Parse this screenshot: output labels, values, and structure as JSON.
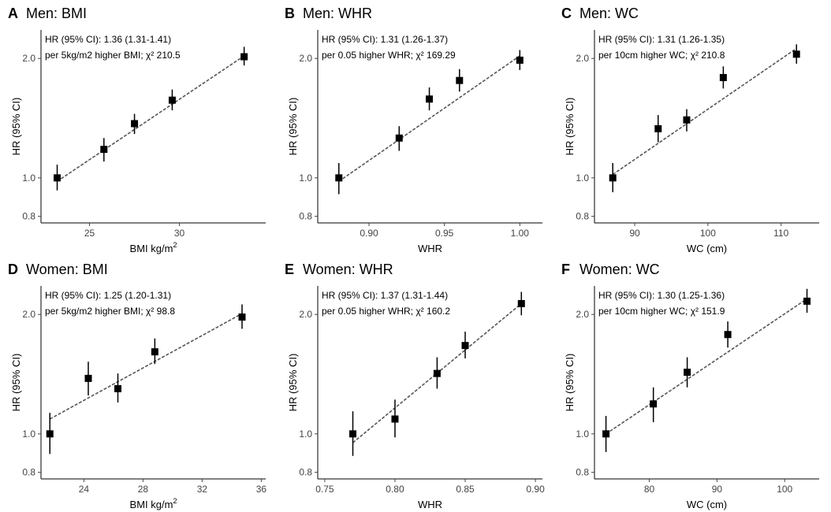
{
  "chart_data": [
    {
      "panel": "A",
      "title": "Men: BMI",
      "type": "scatter",
      "annotation_line1": "HR (95% CI): 1.36 (1.31-1.41)",
      "annotation_line2": "per 5kg/m2 higher BMI; χ² 210.5",
      "xlabel": "BMI kg/m",
      "xlabel_sup": "2",
      "ylabel": "HR (95% CI)",
      "xlim": [
        22.3,
        34.8
      ],
      "ylim": [
        0.77,
        2.36
      ],
      "y_scale": "log",
      "xticks": [
        25,
        30
      ],
      "xtick_labels": [
        "25",
        "30"
      ],
      "yticks": [
        0.8,
        1.0,
        2.0
      ],
      "ytick_labels": [
        "0.8",
        "1.0",
        "2.0"
      ],
      "points": [
        {
          "x": 23.2,
          "y": 1.0,
          "lo": 0.93,
          "hi": 1.08
        },
        {
          "x": 25.8,
          "y": 1.18,
          "lo": 1.1,
          "hi": 1.26
        },
        {
          "x": 27.5,
          "y": 1.37,
          "lo": 1.29,
          "hi": 1.45
        },
        {
          "x": 29.6,
          "y": 1.57,
          "lo": 1.48,
          "hi": 1.67
        },
        {
          "x": 33.6,
          "y": 2.02,
          "lo": 1.92,
          "hi": 2.14
        }
      ],
      "fit": [
        [
          23.2,
          0.98
        ],
        [
          33.6,
          2.03
        ]
      ]
    },
    {
      "panel": "B",
      "title": "Men: WHR",
      "type": "scatter",
      "annotation_line1": "HR (95% CI): 1.31 (1.26-1.37)",
      "annotation_line2": "per 0.05 higher WHR; χ² 169.29",
      "xlabel": "WHR",
      "xlabel_sup": "",
      "ylabel": "HR (95% CI)",
      "xlim": [
        0.866,
        1.015
      ],
      "ylim": [
        0.77,
        2.36
      ],
      "y_scale": "log",
      "xticks": [
        0.9,
        0.95,
        1.0
      ],
      "xtick_labels": [
        "0.90",
        "0.95",
        "1.00"
      ],
      "yticks": [
        0.8,
        1.0,
        2.0
      ],
      "ytick_labels": [
        "0.8",
        "1.0",
        "2.0"
      ],
      "points": [
        {
          "x": 0.88,
          "y": 1.0,
          "lo": 0.91,
          "hi": 1.09
        },
        {
          "x": 0.92,
          "y": 1.26,
          "lo": 1.17,
          "hi": 1.35
        },
        {
          "x": 0.94,
          "y": 1.58,
          "lo": 1.48,
          "hi": 1.69
        },
        {
          "x": 0.96,
          "y": 1.76,
          "lo": 1.65,
          "hi": 1.88
        },
        {
          "x": 1.0,
          "y": 1.98,
          "lo": 1.87,
          "hi": 2.1
        }
      ],
      "fit": [
        [
          0.88,
          0.98
        ],
        [
          1.0,
          2.03
        ]
      ]
    },
    {
      "panel": "C",
      "title": "Men: WC",
      "type": "scatter",
      "annotation_line1": "HR (95% CI): 1.31 (1.26-1.35)",
      "annotation_line2": "per 10cm higher WC; χ² 210.8",
      "xlabel": "WC (cm)",
      "xlabel_sup": "",
      "ylabel": "HR (95% CI)",
      "xlim": [
        84.5,
        115.2
      ],
      "ylim": [
        0.77,
        2.36
      ],
      "y_scale": "log",
      "xticks": [
        90,
        100,
        110
      ],
      "xtick_labels": [
        "90",
        "100",
        "110"
      ],
      "yticks": [
        0.8,
        1.0,
        2.0
      ],
      "ytick_labels": [
        "0.8",
        "1.0",
        "2.0"
      ],
      "points": [
        {
          "x": 87.0,
          "y": 1.0,
          "lo": 0.92,
          "hi": 1.09
        },
        {
          "x": 93.2,
          "y": 1.33,
          "lo": 1.23,
          "hi": 1.44
        },
        {
          "x": 97.1,
          "y": 1.4,
          "lo": 1.31,
          "hi": 1.49
        },
        {
          "x": 102.1,
          "y": 1.79,
          "lo": 1.68,
          "hi": 1.91
        },
        {
          "x": 112.1,
          "y": 2.05,
          "lo": 1.94,
          "hi": 2.17
        }
      ],
      "fit": [
        [
          87.0,
          1.02
        ],
        [
          112.1,
          2.12
        ]
      ]
    },
    {
      "panel": "D",
      "title": "Women: BMI",
      "type": "scatter",
      "annotation_line1": "HR (95% CI): 1.25 (1.20-1.31)",
      "annotation_line2": "per 5kg/m2 higher BMI; χ² 98.8",
      "xlabel": "BMI kg/m",
      "xlabel_sup": "2",
      "ylabel": "HR (95% CI)",
      "xlim": [
        21.1,
        36.3
      ],
      "ylim": [
        0.77,
        2.36
      ],
      "y_scale": "log",
      "xticks": [
        24,
        28,
        32,
        36
      ],
      "xtick_labels": [
        "24",
        "28",
        "32",
        "36"
      ],
      "yticks": [
        0.8,
        1.0,
        2.0
      ],
      "ytick_labels": [
        "0.8",
        "1.0",
        "2.0"
      ],
      "points": [
        {
          "x": 21.7,
          "y": 1.0,
          "lo": 0.89,
          "hi": 1.13
        },
        {
          "x": 24.3,
          "y": 1.38,
          "lo": 1.25,
          "hi": 1.52
        },
        {
          "x": 26.3,
          "y": 1.3,
          "lo": 1.2,
          "hi": 1.42
        },
        {
          "x": 28.8,
          "y": 1.61,
          "lo": 1.5,
          "hi": 1.74
        },
        {
          "x": 34.7,
          "y": 1.97,
          "lo": 1.84,
          "hi": 2.12
        }
      ],
      "fit": [
        [
          21.7,
          1.09
        ],
        [
          34.7,
          2.01
        ]
      ]
    },
    {
      "panel": "E",
      "title": "Women: WHR",
      "type": "scatter",
      "annotation_line1": "HR (95% CI): 1.37 (1.31-1.44)",
      "annotation_line2": "per 0.05 higher WHR; χ² 160.2",
      "xlabel": "WHR",
      "xlabel_sup": "",
      "ylabel": "HR (95% CI)",
      "xlim": [
        0.745,
        0.905
      ],
      "ylim": [
        0.77,
        2.36
      ],
      "y_scale": "log",
      "xticks": [
        0.75,
        0.8,
        0.85,
        0.9
      ],
      "xtick_labels": [
        "0.75",
        "0.80",
        "0.85",
        "0.90"
      ],
      "yticks": [
        0.8,
        1.0,
        2.0
      ],
      "ytick_labels": [
        "0.8",
        "1.0",
        "2.0"
      ],
      "points": [
        {
          "x": 0.77,
          "y": 1.0,
          "lo": 0.88,
          "hi": 1.14
        },
        {
          "x": 0.8,
          "y": 1.09,
          "lo": 0.98,
          "hi": 1.22
        },
        {
          "x": 0.83,
          "y": 1.42,
          "lo": 1.3,
          "hi": 1.56
        },
        {
          "x": 0.85,
          "y": 1.67,
          "lo": 1.55,
          "hi": 1.81
        },
        {
          "x": 0.89,
          "y": 2.13,
          "lo": 1.99,
          "hi": 2.28
        }
      ],
      "fit": [
        [
          0.77,
          0.95
        ],
        [
          0.89,
          2.13
        ]
      ]
    },
    {
      "panel": "F",
      "title": "Women: WC",
      "type": "scatter",
      "annotation_line1": "HR (95% CI): 1.30 (1.25-1.36)",
      "annotation_line2": "per 10cm higher WC; χ² 151.9",
      "xlabel": "WC (cm)",
      "xlabel_sup": "",
      "ylabel": "HR (95% CI)",
      "xlim": [
        71.9,
        105.1
      ],
      "ylim": [
        0.77,
        2.36
      ],
      "y_scale": "log",
      "xticks": [
        80,
        90,
        100
      ],
      "xtick_labels": [
        "80",
        "90",
        "100"
      ],
      "yticks": [
        0.8,
        1.0,
        2.0
      ],
      "ytick_labels": [
        "0.8",
        "1.0",
        "2.0"
      ],
      "points": [
        {
          "x": 73.6,
          "y": 1.0,
          "lo": 0.9,
          "hi": 1.11
        },
        {
          "x": 80.6,
          "y": 1.19,
          "lo": 1.07,
          "hi": 1.31
        },
        {
          "x": 85.6,
          "y": 1.43,
          "lo": 1.31,
          "hi": 1.56
        },
        {
          "x": 91.6,
          "y": 1.78,
          "lo": 1.65,
          "hi": 1.92
        },
        {
          "x": 103.3,
          "y": 2.16,
          "lo": 2.02,
          "hi": 2.32
        }
      ],
      "fit": [
        [
          73.6,
          1.0
        ],
        [
          103.3,
          2.19
        ]
      ]
    }
  ]
}
